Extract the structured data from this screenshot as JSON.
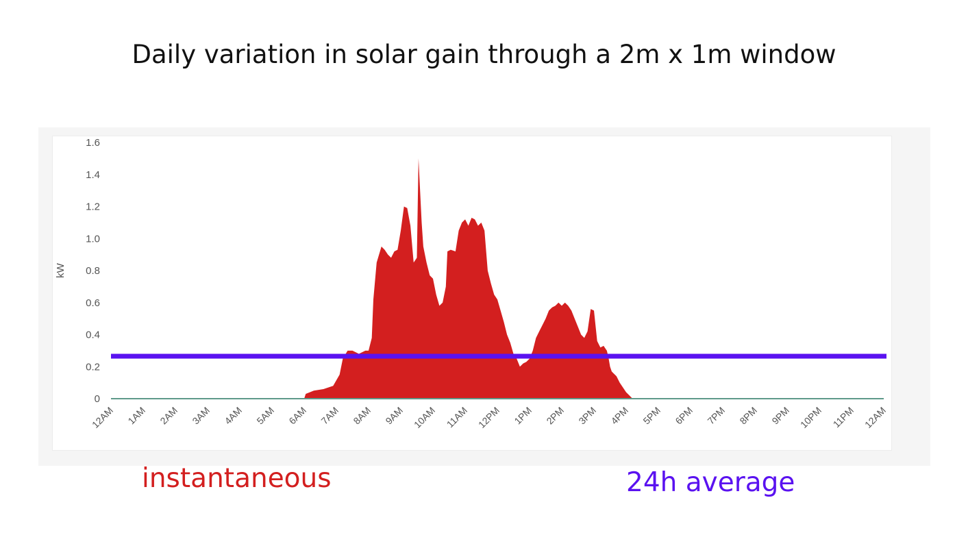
{
  "title": "Daily variation in solar gain through a 2m x 1m window",
  "legend": {
    "instantaneous": "instantaneous",
    "average": "24h average"
  },
  "colors": {
    "instantaneous": "#d31f1f",
    "average": "#5a12f0",
    "baseline": "#5e9a8a",
    "axis_text": "#555555"
  },
  "chart_data": {
    "type": "area",
    "title": "",
    "xlabel": "",
    "ylabel": "kW",
    "xlim": [
      0,
      24
    ],
    "ylim": [
      0,
      1.6
    ],
    "yticks": [
      0,
      0.2,
      0.4,
      0.6,
      0.8,
      1.0,
      1.2,
      1.4,
      1.6
    ],
    "ytick_labels": [
      "0",
      "0.2",
      "0.4",
      "0.6",
      "0.8",
      "1.0",
      "1.2",
      "1.4",
      "1.6"
    ],
    "xtick_labels": [
      "12AM",
      "1AM",
      "2AM",
      "3AM",
      "4AM",
      "5AM",
      "6AM",
      "7AM",
      "8AM",
      "9AM",
      "10AM",
      "11AM",
      "12PM",
      "1PM",
      "2PM",
      "3PM",
      "4PM",
      "5PM",
      "6PM",
      "7PM",
      "8PM",
      "9PM",
      "10PM",
      "11PM",
      "12AM"
    ],
    "grid": false,
    "legend_placement": "bottom",
    "series": [
      {
        "name": "instantaneous",
        "kind": "area",
        "x": [
          0,
          6.0,
          6.05,
          6.3,
          6.6,
          6.9,
          7.1,
          7.2,
          7.35,
          7.5,
          7.7,
          7.9,
          8.0,
          8.1,
          8.15,
          8.25,
          8.4,
          8.5,
          8.6,
          8.7,
          8.8,
          8.9,
          9.0,
          9.1,
          9.2,
          9.3,
          9.4,
          9.5,
          9.55,
          9.65,
          9.7,
          9.8,
          9.9,
          10.0,
          10.1,
          10.2,
          10.3,
          10.4,
          10.45,
          10.55,
          10.7,
          10.8,
          10.9,
          11.0,
          11.1,
          11.2,
          11.3,
          11.4,
          11.5,
          11.6,
          11.7,
          11.8,
          11.9,
          12.0,
          12.1,
          12.2,
          12.3,
          12.4,
          12.5,
          12.6,
          12.7,
          12.8,
          12.9,
          13.0,
          13.1,
          13.2,
          13.3,
          13.4,
          13.5,
          13.6,
          13.7,
          13.8,
          13.9,
          14.0,
          14.1,
          14.2,
          14.3,
          14.4,
          14.5,
          14.6,
          14.7,
          14.8,
          14.9,
          15.0,
          15.1,
          15.2,
          15.3,
          15.4,
          15.45,
          15.5,
          15.55,
          15.6,
          15.7,
          15.8,
          15.9,
          16.0,
          16.1,
          16.2,
          16.3,
          16.4,
          16.5,
          16.6,
          16.7,
          16.8,
          16.9,
          17.0,
          24
        ],
        "y": [
          0,
          0,
          0.03,
          0.05,
          0.06,
          0.08,
          0.15,
          0.25,
          0.3,
          0.3,
          0.28,
          0.3,
          0.3,
          0.38,
          0.62,
          0.85,
          0.95,
          0.93,
          0.9,
          0.88,
          0.92,
          0.93,
          1.05,
          1.2,
          1.19,
          1.08,
          0.85,
          0.88,
          1.5,
          1.1,
          0.95,
          0.85,
          0.77,
          0.75,
          0.65,
          0.58,
          0.6,
          0.7,
          0.92,
          0.93,
          0.92,
          1.05,
          1.1,
          1.12,
          1.08,
          1.13,
          1.12,
          1.08,
          1.1,
          1.05,
          0.8,
          0.72,
          0.65,
          0.62,
          0.55,
          0.48,
          0.4,
          0.35,
          0.28,
          0.25,
          0.2,
          0.22,
          0.23,
          0.25,
          0.3,
          0.38,
          0.42,
          0.46,
          0.5,
          0.55,
          0.57,
          0.58,
          0.6,
          0.58,
          0.6,
          0.58,
          0.55,
          0.5,
          0.45,
          0.4,
          0.38,
          0.42,
          0.56,
          0.55,
          0.36,
          0.32,
          0.33,
          0.3,
          0.26,
          0.2,
          0.17,
          0.16,
          0.14,
          0.1,
          0.07,
          0.04,
          0.02,
          0,
          0,
          0,
          0,
          0,
          0,
          0,
          0,
          0,
          0
        ]
      },
      {
        "name": "24h average",
        "kind": "line",
        "x": [
          0,
          24
        ],
        "y": [
          0.265,
          0.265
        ]
      }
    ]
  }
}
